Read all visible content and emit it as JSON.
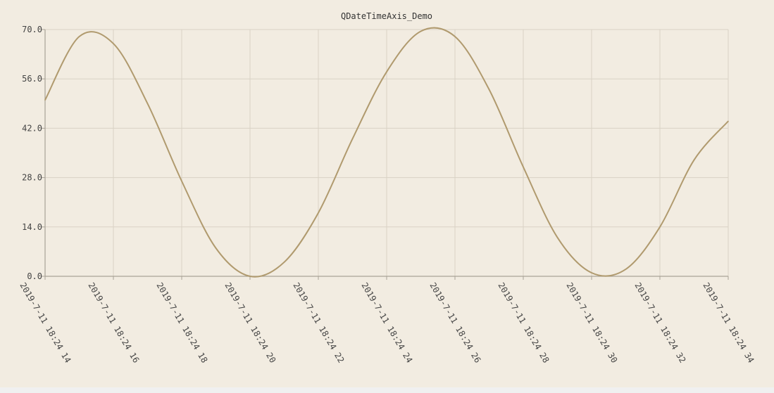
{
  "chart_data": {
    "type": "line",
    "title": "QDateTimeAxis_Demo",
    "xlabel": "",
    "ylabel": "",
    "x_range": [
      "2019-7-11 18:24:14",
      "2019-7-11 18:24:34"
    ],
    "xtick_labels": [
      "2019-7-11 18:24 14",
      "2019-7-11 18:24 16",
      "2019-7-11 18:24 18",
      "2019-7-11 18:24 20",
      "2019-7-11 18:24 22",
      "2019-7-11 18:24 24",
      "2019-7-11 18:24 26",
      "2019-7-11 18:24 28",
      "2019-7-11 18:24 30",
      "2019-7-11 18:24 32",
      "2019-7-11 18:24 34"
    ],
    "yticks": [
      "0.0",
      "14.0",
      "28.0",
      "42.0",
      "56.0",
      "70.0"
    ],
    "ylim": [
      0,
      70
    ],
    "grid": true,
    "legend": "none",
    "series": [
      {
        "color": "#b09a6e",
        "x": [
          "2019-7-11 18:24:14",
          "2019-7-11 18:24:15",
          "2019-7-11 18:24:16",
          "2019-7-11 18:24:17",
          "2019-7-11 18:24:18",
          "2019-7-11 18:24:19",
          "2019-7-11 18:24:20",
          "2019-7-11 18:24:21",
          "2019-7-11 18:24:22",
          "2019-7-11 18:24:23",
          "2019-7-11 18:24:24",
          "2019-7-11 18:24:25",
          "2019-7-11 18:24:26",
          "2019-7-11 18:24:27",
          "2019-7-11 18:24:28",
          "2019-7-11 18:24:29",
          "2019-7-11 18:24:30",
          "2019-7-11 18:24:31",
          "2019-7-11 18:24:32",
          "2019-7-11 18:24:33",
          "2019-7-11 18:24:34"
        ],
        "y": [
          50.0,
          68.0,
          66.0,
          49.0,
          27.0,
          8.0,
          0.0,
          4.0,
          18.0,
          39.0,
          58.0,
          69.5,
          68.0,
          53.0,
          31.0,
          11.0,
          1.0,
          2.0,
          14.0,
          33.0,
          44.0
        ]
      }
    ]
  }
}
